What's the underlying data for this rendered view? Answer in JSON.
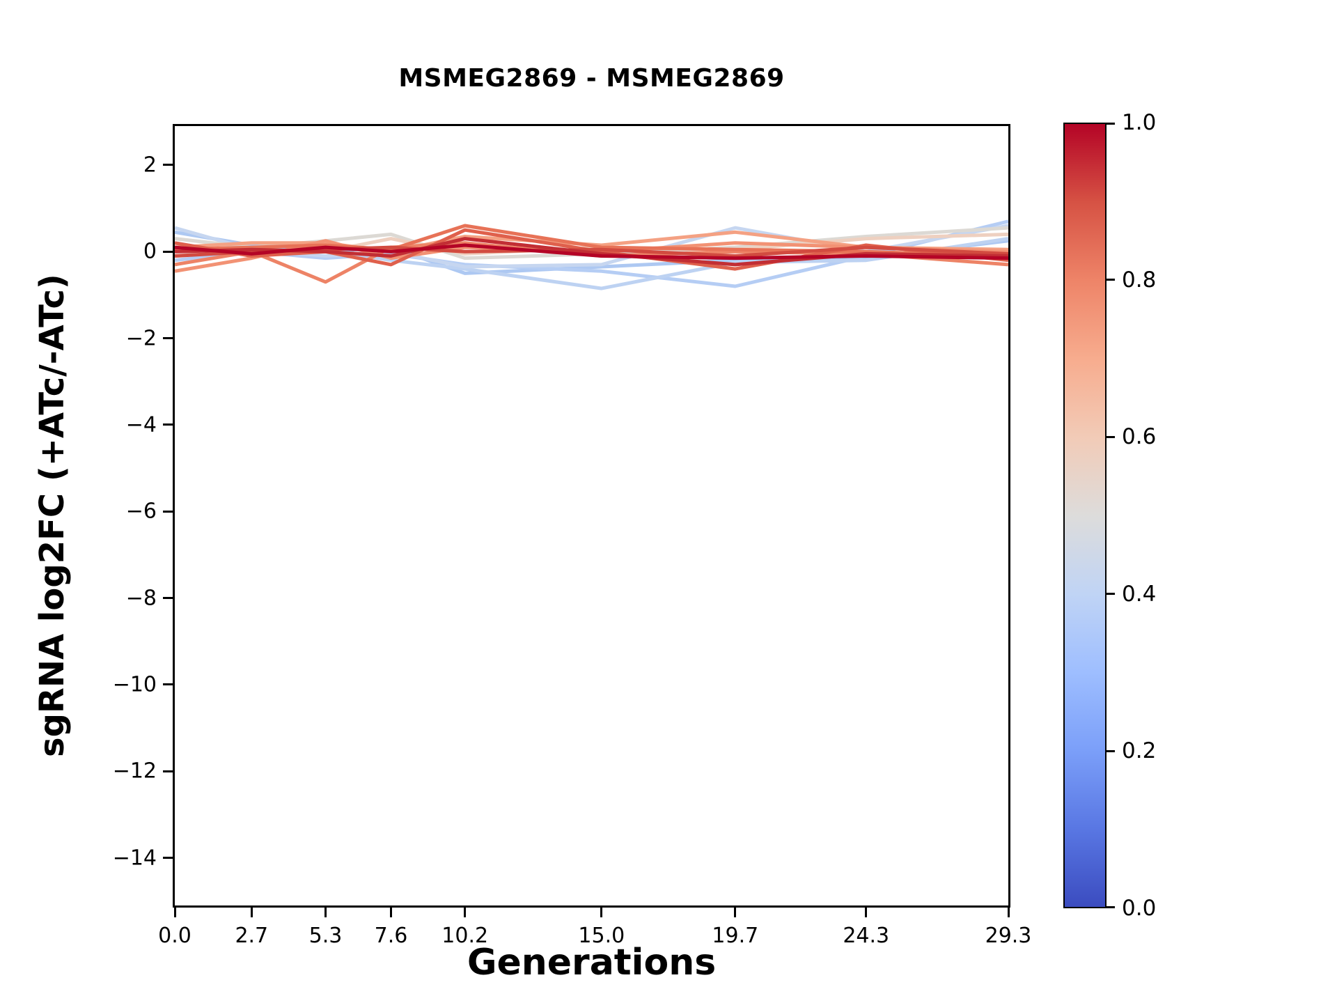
{
  "figure": {
    "background": "#ffffff"
  },
  "chart_data": {
    "type": "line",
    "title": "MSMEG2869 - MSMEG2869",
    "xlabel": "Generations",
    "ylabel": "sgRNA log2FC (+ATc/-ATc)",
    "x": [
      0.0,
      2.7,
      5.3,
      7.6,
      10.2,
      15.0,
      19.7,
      24.3,
      29.3
    ],
    "x_tick_labels": [
      "0.0",
      "2.7",
      "5.3",
      "7.6",
      "10.2",
      "15.0",
      "19.7",
      "24.3",
      "29.3"
    ],
    "y_ticks": [
      2,
      0,
      -2,
      -4,
      -6,
      -8,
      -10,
      -12,
      -14
    ],
    "y_tick_labels": [
      "2",
      "0",
      "−2",
      "−4",
      "−6",
      "−8",
      "−10",
      "−12",
      "−14"
    ],
    "xlim": [
      0,
      29.3
    ],
    "ylim": [
      -15.1,
      2.9
    ],
    "grid": false,
    "legend_position": "none",
    "series": [
      {
        "colormap_value": 0.38,
        "color": "#adc8f2",
        "values": [
          0.45,
          0.15,
          0.0,
          0.1,
          -0.5,
          -0.35,
          -0.2,
          -0.15,
          0.25
        ]
      },
      {
        "colormap_value": 0.4,
        "color": "#b5cdf4",
        "values": [
          -0.2,
          0.0,
          -0.15,
          -0.05,
          -0.3,
          -0.45,
          -0.8,
          -0.1,
          0.7
        ]
      },
      {
        "colormap_value": 0.42,
        "color": "#bdd2f2",
        "values": [
          0.2,
          -0.1,
          0.05,
          -0.2,
          -0.4,
          -0.85,
          -0.25,
          -0.2,
          0.3
        ]
      },
      {
        "colormap_value": 0.45,
        "color": "#c6d6f0",
        "values": [
          0.55,
          0.05,
          -0.1,
          0.0,
          -0.35,
          -0.3,
          0.55,
          0.0,
          0.6
        ]
      },
      {
        "colormap_value": 0.55,
        "color": "#dcd9d4",
        "values": [
          0.3,
          0.1,
          0.25,
          0.4,
          -0.15,
          -0.05,
          0.1,
          0.35,
          0.55
        ]
      },
      {
        "colormap_value": 0.6,
        "color": "#eed0c0",
        "values": [
          -0.1,
          0.05,
          0.0,
          0.3,
          -0.05,
          0.1,
          0.05,
          0.3,
          0.4
        ]
      },
      {
        "colormap_value": 0.75,
        "color": "#f4a183",
        "values": [
          0.1,
          0.2,
          0.2,
          0.0,
          0.35,
          0.15,
          0.45,
          0.1,
          0.05
        ]
      },
      {
        "colormap_value": 0.78,
        "color": "#f29274",
        "values": [
          -0.45,
          -0.15,
          0.25,
          -0.15,
          0.1,
          0.0,
          0.2,
          0.1,
          0.0
        ]
      },
      {
        "colormap_value": 0.82,
        "color": "#ed8366",
        "values": [
          -0.3,
          0.0,
          -0.7,
          0.1,
          0.2,
          -0.1,
          0.0,
          -0.05,
          -0.3
        ]
      },
      {
        "colormap_value": 0.85,
        "color": "#e77257",
        "values": [
          0.05,
          0.1,
          0.15,
          0.05,
          0.6,
          0.1,
          0.05,
          0.0,
          -0.1
        ]
      },
      {
        "colormap_value": 0.88,
        "color": "#df604c",
        "values": [
          0.2,
          -0.1,
          0.0,
          -0.3,
          0.5,
          0.0,
          -0.4,
          0.15,
          -0.2
        ]
      },
      {
        "colormap_value": 0.92,
        "color": "#d24b40",
        "values": [
          -0.1,
          0.0,
          0.05,
          0.1,
          0.0,
          0.05,
          -0.1,
          0.1,
          -0.05
        ]
      },
      {
        "colormap_value": 0.96,
        "color": "#c22e34",
        "values": [
          0.0,
          0.05,
          0.0,
          -0.1,
          0.3,
          -0.05,
          -0.3,
          -0.05,
          -0.1
        ]
      },
      {
        "colormap_value": 1.0,
        "color": "#b40426",
        "values": [
          0.1,
          -0.05,
          0.1,
          0.0,
          0.15,
          -0.1,
          -0.15,
          -0.1,
          -0.15
        ]
      }
    ],
    "colorbar": {
      "orientation": "vertical",
      "colormap": "coolwarm",
      "tick_labels": [
        "0.0",
        "0.2",
        "0.4",
        "0.6",
        "0.8",
        "1.0"
      ],
      "gradient_stops": [
        "#3b4cc0",
        "#5977e3",
        "#7b9ff9",
        "#9ebeff",
        "#c0d4f5",
        "#dddcdb",
        "#f2cbb7",
        "#f7ac8e",
        "#ee8468",
        "#d65244",
        "#b40426"
      ]
    }
  }
}
